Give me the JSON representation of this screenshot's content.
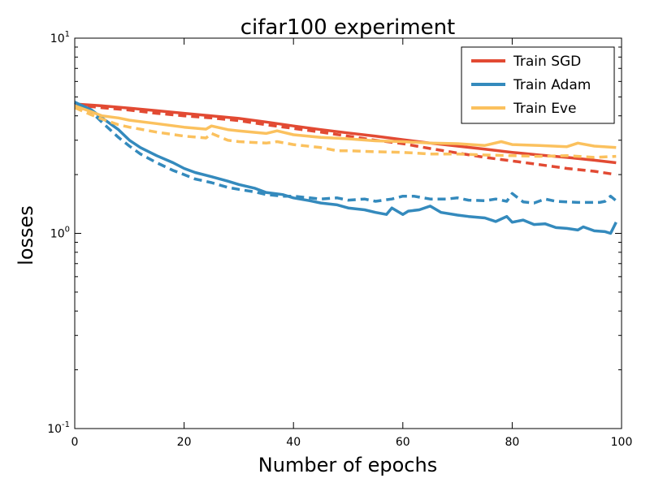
{
  "chart_data": {
    "type": "line",
    "title": "cifar100 experiment",
    "xlabel": "Number of epochs",
    "ylabel": "losses",
    "xlim": [
      0,
      100
    ],
    "ylim": [
      0.1,
      10
    ],
    "yscale": "log",
    "x_ticks": [
      "0",
      "20",
      "40",
      "60",
      "80",
      "100"
    ],
    "y_ticks": [
      {
        "value": 10,
        "base": "10",
        "exp": "1"
      },
      {
        "value": 1,
        "base": "10",
        "exp": "0"
      },
      {
        "value": 0.1,
        "base": "10",
        "exp": "-1"
      }
    ],
    "grid": false,
    "legend": "top-right",
    "series": [
      {
        "name": "Train SGD",
        "color": "#e24a33",
        "style": "solid",
        "x": [
          0,
          5,
          10,
          15,
          20,
          25,
          30,
          35,
          40,
          45,
          50,
          55,
          60,
          65,
          70,
          75,
          80,
          85,
          90,
          95,
          99
        ],
        "y": [
          4.6,
          4.5,
          4.38,
          4.25,
          4.12,
          4.0,
          3.88,
          3.72,
          3.55,
          3.4,
          3.27,
          3.15,
          3.02,
          2.9,
          2.8,
          2.7,
          2.6,
          2.52,
          2.45,
          2.37,
          2.3
        ]
      },
      {
        "name": "",
        "color": "#e24a33",
        "style": "dashed",
        "x": [
          0,
          5,
          10,
          15,
          20,
          25,
          30,
          35,
          40,
          45,
          50,
          55,
          60,
          65,
          70,
          75,
          80,
          85,
          90,
          95,
          99
        ],
        "y": [
          4.55,
          4.4,
          4.28,
          4.12,
          4.0,
          3.9,
          3.78,
          3.6,
          3.45,
          3.3,
          3.15,
          3.0,
          2.88,
          2.72,
          2.58,
          2.45,
          2.35,
          2.25,
          2.15,
          2.08,
          2.0
        ]
      },
      {
        "name": "Train Adam",
        "color": "#348abd",
        "style": "solid",
        "x": [
          0,
          3,
          5,
          8,
          10,
          12,
          15,
          18,
          20,
          22,
          25,
          28,
          30,
          33,
          35,
          38,
          40,
          43,
          45,
          48,
          50,
          53,
          55,
          57,
          58,
          60,
          61,
          63,
          65,
          67,
          70,
          72,
          75,
          77,
          79,
          80,
          82,
          84,
          86,
          88,
          90,
          92,
          93,
          95,
          97,
          98,
          99
        ],
        "y": [
          4.7,
          4.3,
          3.9,
          3.4,
          3.0,
          2.75,
          2.5,
          2.3,
          2.15,
          2.05,
          1.95,
          1.85,
          1.78,
          1.7,
          1.62,
          1.58,
          1.52,
          1.47,
          1.43,
          1.4,
          1.35,
          1.32,
          1.28,
          1.25,
          1.35,
          1.25,
          1.3,
          1.32,
          1.38,
          1.28,
          1.24,
          1.22,
          1.2,
          1.15,
          1.22,
          1.14,
          1.17,
          1.11,
          1.12,
          1.07,
          1.06,
          1.04,
          1.08,
          1.03,
          1.02,
          1.0,
          1.14
        ]
      },
      {
        "name": "",
        "color": "#348abd",
        "style": "dashed",
        "x": [
          0,
          3,
          5,
          8,
          10,
          12,
          15,
          18,
          20,
          22,
          25,
          28,
          30,
          33,
          35,
          38,
          40,
          43,
          45,
          48,
          50,
          53,
          55,
          58,
          60,
          62,
          65,
          68,
          70,
          72,
          75,
          77,
          79,
          80,
          82,
          84,
          86,
          88,
          90,
          92,
          94,
          96,
          97,
          98,
          99
        ],
        "y": [
          4.7,
          4.2,
          3.7,
          3.1,
          2.8,
          2.55,
          2.3,
          2.1,
          2.0,
          1.9,
          1.82,
          1.72,
          1.68,
          1.63,
          1.58,
          1.55,
          1.55,
          1.52,
          1.5,
          1.52,
          1.48,
          1.5,
          1.46,
          1.5,
          1.55,
          1.55,
          1.5,
          1.5,
          1.52,
          1.48,
          1.47,
          1.5,
          1.46,
          1.6,
          1.45,
          1.43,
          1.5,
          1.46,
          1.45,
          1.44,
          1.44,
          1.44,
          1.46,
          1.55,
          1.47
        ]
      },
      {
        "name": "Train Eve",
        "color": "#fbc15e",
        "style": "solid",
        "x": [
          0,
          3,
          5,
          8,
          10,
          15,
          20,
          24,
          25,
          28,
          30,
          35,
          37,
          40,
          45,
          50,
          55,
          60,
          65,
          70,
          75,
          78,
          80,
          85,
          90,
          92,
          95,
          99
        ],
        "y": [
          4.5,
          4.2,
          4.0,
          3.9,
          3.8,
          3.65,
          3.5,
          3.42,
          3.55,
          3.4,
          3.35,
          3.25,
          3.35,
          3.2,
          3.1,
          3.05,
          2.98,
          2.95,
          2.9,
          2.88,
          2.82,
          2.95,
          2.85,
          2.82,
          2.78,
          2.9,
          2.8,
          2.75
        ]
      },
      {
        "name": "",
        "color": "#fbc15e",
        "style": "dashed",
        "x": [
          0,
          3,
          5,
          8,
          10,
          15,
          20,
          24,
          25,
          28,
          30,
          35,
          37,
          40,
          45,
          48,
          50,
          55,
          60,
          65,
          70,
          75,
          80,
          85,
          90,
          95,
          99
        ],
        "y": [
          4.4,
          4.05,
          3.85,
          3.6,
          3.5,
          3.3,
          3.15,
          3.08,
          3.25,
          3.0,
          2.95,
          2.9,
          2.95,
          2.85,
          2.75,
          2.65,
          2.65,
          2.62,
          2.6,
          2.55,
          2.55,
          2.52,
          2.5,
          2.48,
          2.5,
          2.45,
          2.48
        ]
      }
    ]
  }
}
